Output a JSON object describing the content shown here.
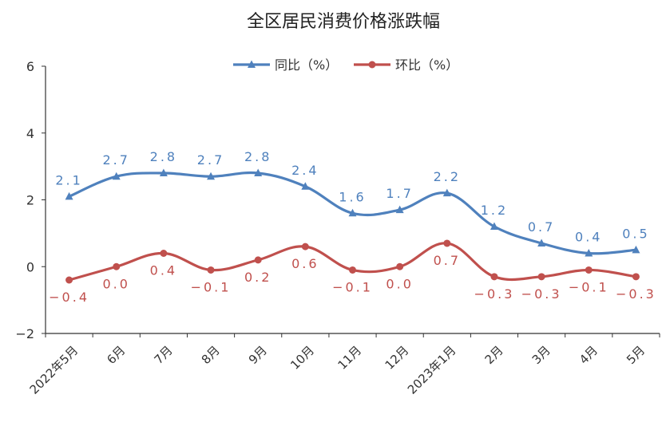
{
  "chart_data": {
    "type": "line",
    "title": "全区居民消费价格涨跌幅",
    "xlabel": "",
    "ylabel": "",
    "ylim": [
      -2,
      6
    ],
    "yticks": [
      -2,
      0,
      2,
      4,
      6
    ],
    "categories": [
      "2022年5月",
      "6月",
      "7月",
      "8月",
      "9月",
      "10月",
      "11月",
      "12月",
      "2023年1月",
      "2月",
      "3月",
      "4月",
      "5月"
    ],
    "legend_position": "top-center",
    "grid": false,
    "series": [
      {
        "name": "同比（%）",
        "color": "#4f81bd",
        "marker": "triangle",
        "values": [
          2.1,
          2.7,
          2.8,
          2.7,
          2.8,
          2.4,
          1.6,
          1.7,
          2.2,
          1.2,
          0.7,
          0.4,
          0.5
        ],
        "labels": [
          "2.1",
          "2.7",
          "2.8",
          "2.7",
          "2.8",
          "2.4",
          "1.6",
          "1.7",
          "2.2",
          "1.2",
          "0.7",
          "0.4",
          "0.5"
        ],
        "label_side": "above"
      },
      {
        "name": "环比（%）",
        "color": "#c0504d",
        "marker": "circle",
        "values": [
          -0.4,
          0.0,
          0.4,
          -0.1,
          0.2,
          0.6,
          -0.1,
          0.0,
          0.7,
          -0.3,
          -0.3,
          -0.1,
          -0.3
        ],
        "labels": [
          "−0.4",
          "0.0",
          "0.4",
          "−0.1",
          "0.2",
          "0.6",
          "−0.1",
          "0.0",
          "0.7",
          "−0.3",
          "−0.3",
          "−0.1",
          "−0.3"
        ],
        "label_side": "below"
      }
    ]
  }
}
